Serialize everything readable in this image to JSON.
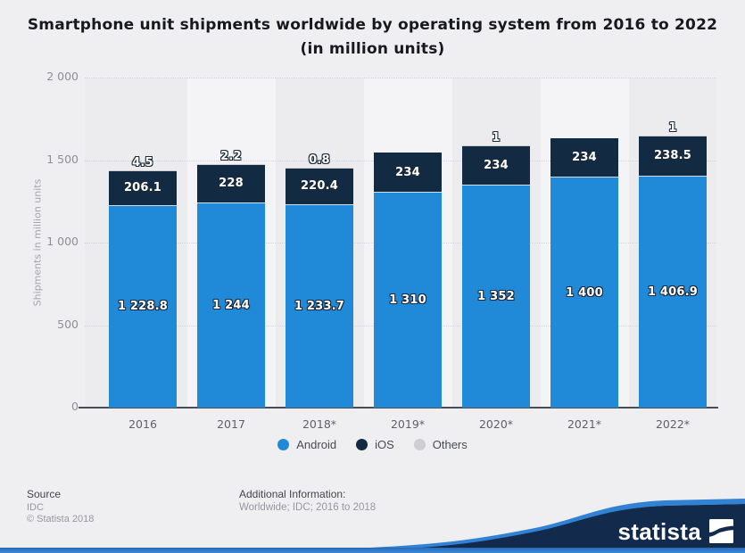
{
  "title": {
    "line1": "Smartphone unit shipments worldwide by operating system from 2016 to 2022",
    "line2": "(in million units)"
  },
  "chart_data": {
    "type": "bar",
    "stacked": true,
    "title": "Smartphone unit shipments worldwide by operating system from 2016 to 2022 (in million units)",
    "categories": [
      "2016",
      "2017",
      "2018*",
      "2019*",
      "2020*",
      "2021*",
      "2022*"
    ],
    "series": [
      {
        "name": "Android",
        "color": "#2089d8",
        "values": [
          1228.8,
          1244,
          1233.7,
          1310,
          1352,
          1400,
          1406.9
        ],
        "labels": [
          "1 228.8",
          "1 244",
          "1 233.7",
          "1 310",
          "1 352",
          "1 400",
          "1 406.9"
        ]
      },
      {
        "name": "iOS",
        "color": "#122b42",
        "values": [
          206.1,
          228,
          220.4,
          234,
          234,
          234,
          238.5
        ],
        "labels": [
          "206.1",
          "228",
          "220.4",
          "234",
          "234",
          "234",
          "238.5"
        ]
      },
      {
        "name": "Others",
        "color": "#cdcdd2",
        "values": [
          4.5,
          2.2,
          0.8,
          0,
          1,
          0,
          1
        ],
        "labels": [
          "4.5",
          "2.2",
          "0.8",
          null,
          "1",
          null,
          "1"
        ]
      }
    ],
    "xlabel": "",
    "ylabel": "Shipments in million units",
    "ylim": [
      0,
      2000
    ],
    "yticks": [
      {
        "value": 0,
        "label": "0"
      },
      {
        "value": 500,
        "label": "500"
      },
      {
        "value": 1000,
        "label": "1 000"
      },
      {
        "value": 1500,
        "label": "1 500"
      },
      {
        "value": 2000,
        "label": "2 000"
      }
    ],
    "grid": "horizontal-dotted",
    "legend_position": "bottom-center"
  },
  "footer": {
    "source_label": "Source",
    "source_value": "IDC",
    "copyright": "© Statista 2018",
    "additional_label": "Additional Information:",
    "additional_value": "Worldwide; IDC; 2016 to 2018"
  },
  "brand": {
    "logo_text": "statista",
    "navy": "#122a4b",
    "accent_blue": "#3182d4"
  }
}
